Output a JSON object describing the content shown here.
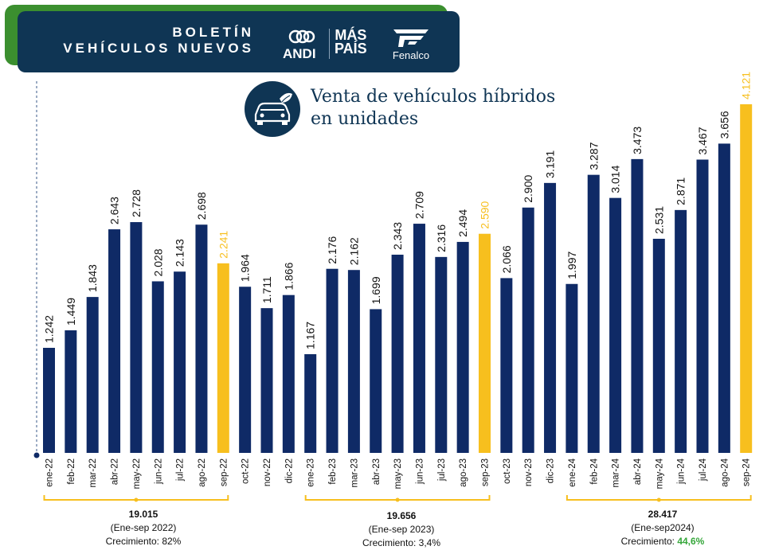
{
  "header": {
    "title_line1": "BOLETÍN",
    "title_line2": "VEHÍCULOS NUEVOS",
    "logos": {
      "andi": "ANDI",
      "mas_line1": "MÁS",
      "mas_line2": "PAÍS",
      "fenalco": "Fenalco"
    },
    "icon": "car-leaf-icon"
  },
  "chart_data": {
    "type": "bar",
    "title_line1": "Venta de vehículos híbridos",
    "title_line2": "en unidades",
    "categories": [
      "ene-22",
      "feb-22",
      "mar-22",
      "abr-22",
      "may-22",
      "jun-22",
      "jul-22",
      "ago-22",
      "sep-22",
      "oct-22",
      "nov-22",
      "dic-22",
      "ene-23",
      "feb-23",
      "mar-23",
      "abr-23",
      "may-23",
      "jun-23",
      "jul-23",
      "ago-23",
      "sep-23",
      "oct-23",
      "nov-23",
      "dic-23",
      "ene-24",
      "feb-24",
      "mar-24",
      "abr-24",
      "may-24",
      "jun-24",
      "jul-24",
      "ago-24",
      "sep-24"
    ],
    "values": [
      1242,
      1449,
      1843,
      2643,
      2728,
      2028,
      2143,
      2698,
      2241,
      1964,
      1711,
      1866,
      1167,
      2176,
      2162,
      1699,
      2343,
      2709,
      2316,
      2494,
      2590,
      2066,
      2900,
      3191,
      1997,
      3287,
      3014,
      3473,
      2531,
      2871,
      3467,
      3656,
      4121
    ],
    "value_labels": [
      "1.242",
      "1.449",
      "1.843",
      "2.643",
      "2.728",
      "2.028",
      "2.143",
      "2.698",
      "2.241",
      "1.964",
      "1.711",
      "1.866",
      "1.167",
      "2.176",
      "2.162",
      "1.699",
      "2.343",
      "2.709",
      "2.316",
      "2.494",
      "2.590",
      "2.066",
      "2.900",
      "3.191",
      "1.997",
      "3.287",
      "3.014",
      "3.473",
      "2.531",
      "2.871",
      "3.467",
      "3.656",
      "4.121"
    ],
    "highlight_categories": [
      "sep-22",
      "sep-23",
      "sep-24"
    ],
    "ylim": [
      0,
      4121
    ],
    "colors": {
      "bar": "#0f2a66",
      "highlight": "#f7bf1e",
      "label": "#111111"
    },
    "summaries": [
      {
        "total": "19.015",
        "period": "(Ene-sep 2022)",
        "growth_label": "Crecimiento:",
        "growth_value": "82%",
        "growth_highlight": false
      },
      {
        "total": "19.656",
        "period": "(Ene-sep 2023)",
        "growth_label": "Crecimiento:",
        "growth_value": "3,4%",
        "growth_highlight": false
      },
      {
        "total": "28.417",
        "period": "(Ene-sep2024)",
        "growth_label": "Crecimiento:",
        "growth_value": "44,6%",
        "growth_highlight": true
      }
    ]
  }
}
